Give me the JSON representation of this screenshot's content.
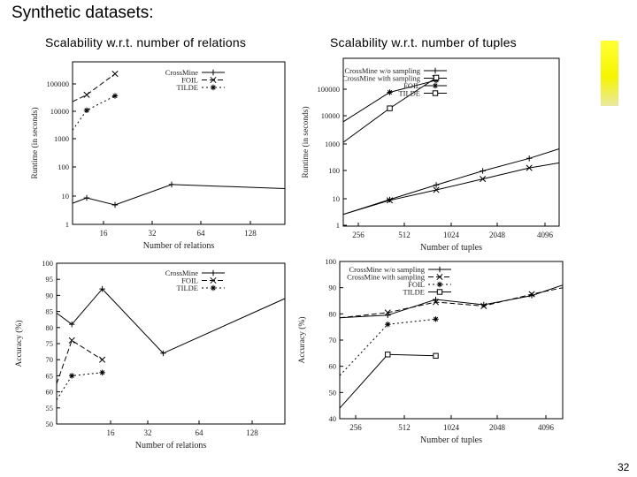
{
  "slide": {
    "title": "Synthetic datasets:",
    "subtitle_left": "Scalability w.r.t. number of relations",
    "subtitle_right": "Scalability w.r.t. number of tuples",
    "page_number": "32",
    "accent_color": "#f5f500"
  },
  "chart_data": [
    {
      "type": "line",
      "title": "",
      "xlabel": "Number of relations",
      "ylabel": "Runtime (in seconds)",
      "yscale": "log",
      "x_tick_labels": [
        "16",
        "32",
        "64",
        "128"
      ],
      "y_tick_labels": [
        "1",
        "10",
        "100",
        "1000",
        "10000",
        "100000"
      ],
      "xlim": [
        10,
        160
      ],
      "ylim": [
        1,
        500000
      ],
      "legend_position": "top-right",
      "series": [
        {
          "name": "CrossMine",
          "x": [
            10,
            20,
            40,
            80,
            160
          ],
          "y": [
            5.5,
            8.5,
            4.8,
            25,
            18
          ]
        },
        {
          "name": "FOIL",
          "x": [
            10,
            20,
            40
          ],
          "y": [
            20000,
            35000,
            190000
          ]
        },
        {
          "name": "TILDE",
          "x": [
            10,
            20,
            40
          ],
          "y": [
            2000,
            10000,
            32000
          ]
        }
      ]
    },
    {
      "type": "line",
      "title": "",
      "xlabel": "Number of tuples",
      "ylabel": "Runtime (in seconds)",
      "yscale": "log",
      "xscale": "log",
      "x_tick_labels": [
        "256",
        "512",
        "1024",
        "2048",
        "4096"
      ],
      "y_tick_labels": [
        "1",
        "10",
        "100",
        "1000",
        "10000",
        "100000"
      ],
      "xlim": [
        200,
        5000
      ],
      "ylim": [
        1,
        500000
      ],
      "legend_position": "top-right",
      "series": [
        {
          "name": "CrossMine w/o sampling",
          "x": [
            200,
            400,
            800,
            1600,
            3200,
            5000
          ],
          "y": [
            2.5,
            8,
            25,
            75,
            200,
            420
          ]
        },
        {
          "name": "CrossMine with sampling",
          "x": [
            200,
            400,
            800,
            1600,
            3200,
            5000
          ],
          "y": [
            2.5,
            7.5,
            17,
            40,
            95,
            140
          ]
        },
        {
          "name": "FOIL",
          "x": [
            200,
            400,
            800
          ],
          "y": [
            3500,
            35000,
            90000
          ]
        },
        {
          "name": "TILDE",
          "x": [
            200,
            400,
            800
          ],
          "y": [
            700,
            10000,
            110000
          ]
        }
      ]
    },
    {
      "type": "line",
      "title": "",
      "xlabel": "Number of relations",
      "ylabel": "Accuracy (%)",
      "x_tick_labels": [
        "16",
        "32",
        "64",
        "128"
      ],
      "y_tick_labels": [
        "50",
        "55",
        "60",
        "65",
        "70",
        "75",
        "80",
        "85",
        "90",
        "95",
        "100"
      ],
      "xlim": [
        10,
        160
      ],
      "ylim": [
        50,
        100
      ],
      "legend_position": "top-right",
      "series": [
        {
          "name": "CrossMine",
          "x": [
            10,
            20,
            40,
            80,
            160
          ],
          "y": [
            84.5,
            81,
            92,
            72,
            89
          ]
        },
        {
          "name": "FOIL",
          "x": [
            10,
            20,
            40
          ],
          "y": [
            62.5,
            76,
            70
          ]
        },
        {
          "name": "TILDE",
          "x": [
            10,
            20,
            40
          ],
          "y": [
            57.5,
            65,
            66
          ]
        }
      ]
    },
    {
      "type": "line",
      "title": "",
      "xlabel": "Number of tuples",
      "ylabel": "Accuracy (%)",
      "xscale": "log",
      "x_tick_labels": [
        "256",
        "512",
        "1024",
        "2048",
        "4096"
      ],
      "y_tick_labels": [
        "40",
        "50",
        "60",
        "70",
        "80",
        "90",
        "100"
      ],
      "xlim": [
        200,
        5000
      ],
      "ylim": [
        40,
        100
      ],
      "legend_position": "top-right",
      "series": [
        {
          "name": "CrossMine w/o sampling",
          "x": [
            200,
            400,
            800,
            1600,
            3200,
            5000
          ],
          "y": [
            78.5,
            79.5,
            85.5,
            83.5,
            87,
            91
          ]
        },
        {
          "name": "CrossMine with sampling",
          "x": [
            200,
            400,
            800,
            1600,
            3200,
            5000
          ],
          "y": [
            78.5,
            80.5,
            84.5,
            83,
            87.5,
            90
          ]
        },
        {
          "name": "FOIL",
          "x": [
            200,
            400,
            800
          ],
          "y": [
            56.5,
            76,
            78
          ]
        },
        {
          "name": "TILDE",
          "x": [
            200,
            400,
            800
          ],
          "y": [
            44,
            64.5,
            64
          ]
        }
      ]
    }
  ]
}
